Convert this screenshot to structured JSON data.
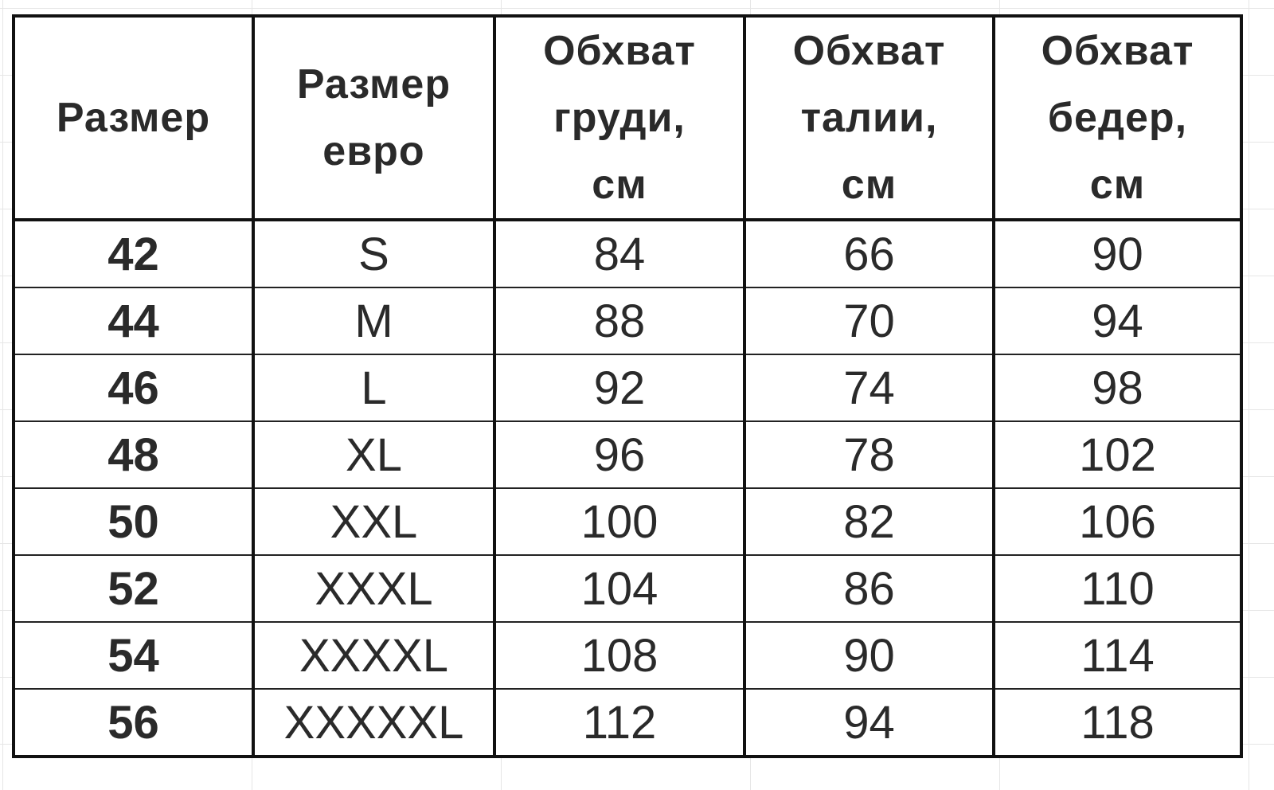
{
  "headers": [
    "Размер",
    "Размер\nевро",
    "Обхват\nгруди,\nсм",
    "Обхват\nталии,\nсм",
    "Обхват\nбедер,\nсм"
  ],
  "rows": [
    [
      "42",
      "S",
      "84",
      "66",
      "90"
    ],
    [
      "44",
      "M",
      "88",
      "70",
      "94"
    ],
    [
      "46",
      "L",
      "92",
      "74",
      "98"
    ],
    [
      "48",
      "XL",
      "96",
      "78",
      "102"
    ],
    [
      "50",
      "XXL",
      "100",
      "82",
      "106"
    ],
    [
      "52",
      "XXXL",
      "104",
      "86",
      "110"
    ],
    [
      "54",
      "XXXXL",
      "108",
      "90",
      "114"
    ],
    [
      "56",
      "XXXXXL",
      "112",
      "94",
      "118"
    ]
  ]
}
